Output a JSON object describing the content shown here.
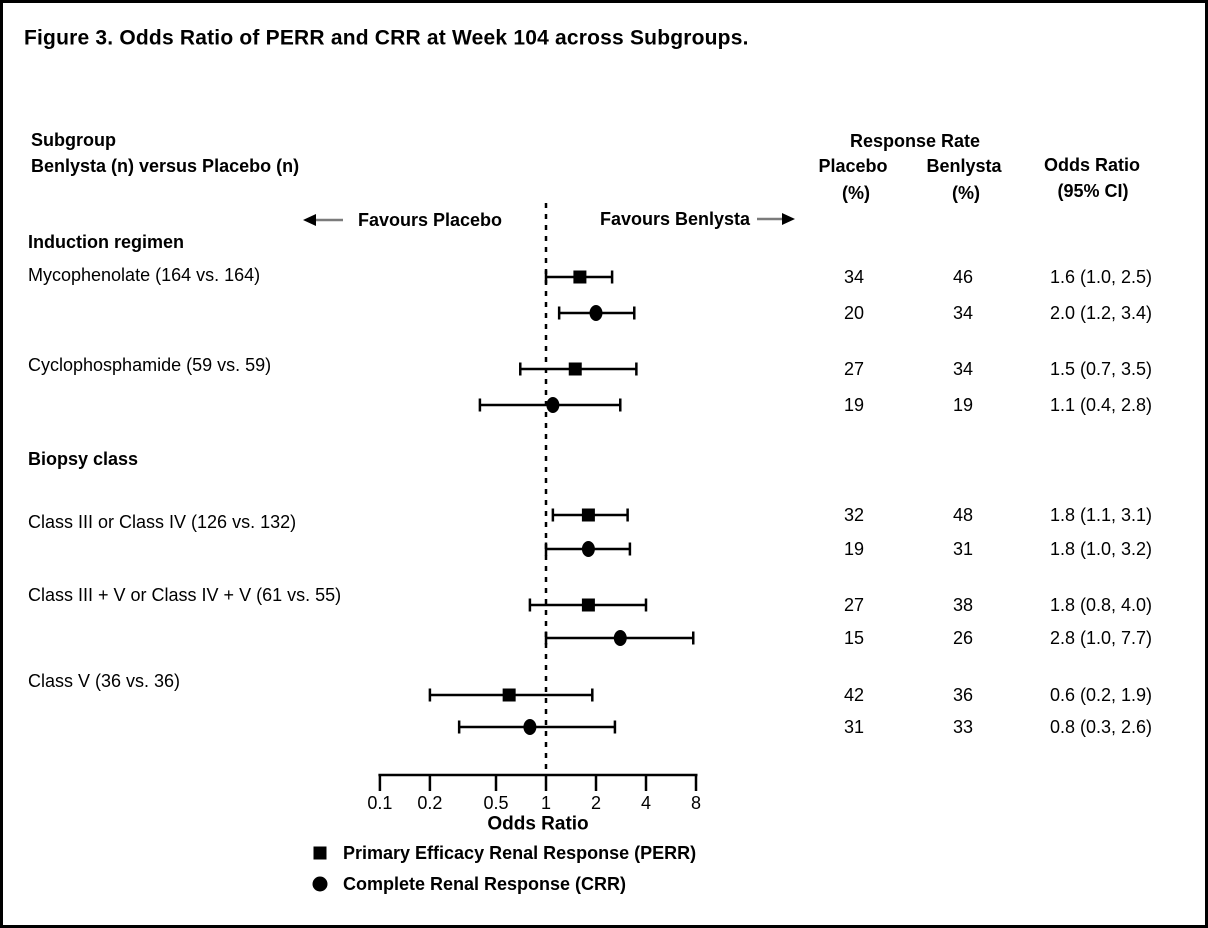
{
  "title": "Figure 3. Odds Ratio of PERR and CRR at Week 104 across Subgroups.",
  "left_header": {
    "line1": "Subgroup",
    "line2": "Benlysta (n) versus Placebo (n)"
  },
  "columns": {
    "response_rate": "Response Rate",
    "placebo_line1": "Placebo",
    "placebo_line2": "(%)",
    "benlysta_line1": "Benlysta",
    "benlysta_line2": "(%)",
    "or_line1": "Odds Ratio",
    "or_line2": "(95% CI)"
  },
  "direction_labels": {
    "left": "Favours Placebo",
    "right": "Favours Benlysta"
  },
  "chart_data": {
    "type": "forest",
    "x_axis": {
      "label": "Odds Ratio",
      "scale": "log",
      "tick_labels": [
        "0.1",
        "0.2",
        "0.5",
        "1",
        "2",
        "4",
        "8"
      ],
      "tick_values": [
        0.1,
        0.2,
        0.5,
        1,
        2,
        4,
        8
      ],
      "xlim": [
        0.1,
        8
      ],
      "reference_line": 1
    },
    "groups": [
      {
        "header": "Induction regimen",
        "rows": [
          {
            "label": "Mycophenolate (164 vs. 164)",
            "estimates": [
              {
                "endpoint": "PERR",
                "marker": "square",
                "placebo_pct": "34",
                "benlysta_pct": "46",
                "or": 1.6,
                "ci_low": 1.0,
                "ci_high": 2.5,
                "or_ci_text": "1.6 (1.0, 2.5)"
              },
              {
                "endpoint": "CRR",
                "marker": "circle",
                "placebo_pct": "20",
                "benlysta_pct": "34",
                "or": 2.0,
                "ci_low": 1.2,
                "ci_high": 3.4,
                "or_ci_text": "2.0 (1.2, 3.4)"
              }
            ]
          },
          {
            "label": "Cyclophosphamide (59 vs. 59)",
            "estimates": [
              {
                "endpoint": "PERR",
                "marker": "square",
                "placebo_pct": "27",
                "benlysta_pct": "34",
                "or": 1.5,
                "ci_low": 0.7,
                "ci_high": 3.5,
                "or_ci_text": "1.5 (0.7, 3.5)"
              },
              {
                "endpoint": "CRR",
                "marker": "circle",
                "placebo_pct": "19",
                "benlysta_pct": "19",
                "or": 1.1,
                "ci_low": 0.4,
                "ci_high": 2.8,
                "or_ci_text": "1.1 (0.4, 2.8)"
              }
            ]
          }
        ]
      },
      {
        "header": "Biopsy class",
        "rows": [
          {
            "label": "Class III or Class IV (126 vs. 132)",
            "estimates": [
              {
                "endpoint": "PERR",
                "marker": "square",
                "placebo_pct": "32",
                "benlysta_pct": "48",
                "or": 1.8,
                "ci_low": 1.1,
                "ci_high": 3.1,
                "or_ci_text": "1.8 (1.1, 3.1)"
              },
              {
                "endpoint": "CRR",
                "marker": "circle",
                "placebo_pct": "19",
                "benlysta_pct": "31",
                "or": 1.8,
                "ci_low": 1.0,
                "ci_high": 3.2,
                "or_ci_text": "1.8 (1.0, 3.2)"
              }
            ]
          },
          {
            "label": "Class III + V or Class IV + V (61 vs. 55)",
            "estimates": [
              {
                "endpoint": "PERR",
                "marker": "square",
                "placebo_pct": "27",
                "benlysta_pct": "38",
                "or": 1.8,
                "ci_low": 0.8,
                "ci_high": 4.0,
                "or_ci_text": "1.8 (0.8, 4.0)"
              },
              {
                "endpoint": "CRR",
                "marker": "circle",
                "placebo_pct": "15",
                "benlysta_pct": "26",
                "or": 2.8,
                "ci_low": 1.0,
                "ci_high": 7.7,
                "or_ci_text": "2.8 (1.0, 7.7)"
              }
            ]
          },
          {
            "label": "Class V (36 vs. 36)",
            "estimates": [
              {
                "endpoint": "PERR",
                "marker": "square",
                "placebo_pct": "42",
                "benlysta_pct": "36",
                "or": 0.6,
                "ci_low": 0.2,
                "ci_high": 1.9,
                "or_ci_text": "0.6 (0.2, 1.9)"
              },
              {
                "endpoint": "CRR",
                "marker": "circle",
                "placebo_pct": "31",
                "benlysta_pct": "33",
                "or": 0.8,
                "ci_low": 0.3,
                "ci_high": 2.6,
                "or_ci_text": "0.8 (0.3, 2.6)"
              }
            ]
          }
        ]
      }
    ],
    "legend": [
      {
        "marker": "square",
        "label": "Primary Efficacy Renal Response (PERR)"
      },
      {
        "marker": "circle",
        "label": "Complete Renal Response (CRR)"
      }
    ]
  },
  "colors": {
    "foreground": "#000000",
    "background": "#ffffff",
    "arrow_shaft": "#7b7b7b"
  }
}
